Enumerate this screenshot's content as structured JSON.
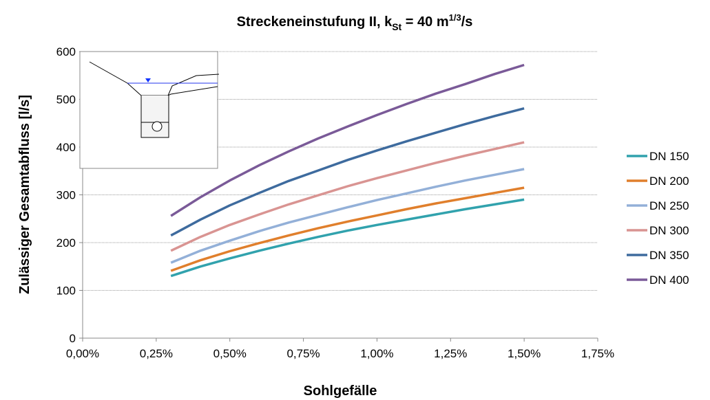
{
  "chart_data": {
    "type": "line",
    "title": [
      "Streckeneinstufung II, k",
      "St",
      " = 40 m",
      "1/3",
      "/s"
    ],
    "x_label": "Sohlgefälle",
    "y_label": "Zulässiger Gesamtabfluss [l/s]",
    "x": [
      0.3,
      0.4,
      0.5,
      0.6,
      0.7,
      0.8,
      0.9,
      1.0,
      1.1,
      1.2,
      1.3,
      1.4,
      1.5
    ],
    "series": [
      {
        "name": "DN 150",
        "color": "#31a2ad",
        "values": [
          130,
          150,
          167,
          183,
          198,
          212,
          225,
          237,
          248,
          259,
          270,
          280,
          290
        ]
      },
      {
        "name": "DN 200",
        "color": "#e07f2c",
        "values": [
          141,
          163,
          182,
          199,
          215,
          230,
          244,
          257,
          270,
          282,
          293,
          304,
          315
        ]
      },
      {
        "name": "DN 250",
        "color": "#93b0d8",
        "values": [
          158,
          183,
          204,
          224,
          242,
          258,
          274,
          289,
          303,
          317,
          330,
          342,
          354
        ]
      },
      {
        "name": "DN 300",
        "color": "#d99492",
        "values": [
          183,
          212,
          237,
          259,
          280,
          299,
          318,
          335,
          351,
          367,
          382,
          396,
          410
        ]
      },
      {
        "name": "DN 350",
        "color": "#3e6b9e",
        "values": [
          215,
          248,
          278,
          304,
          329,
          351,
          373,
          393,
          412,
          430,
          448,
          465,
          481
        ]
      },
      {
        "name": "DN 400",
        "color": "#7a5a98",
        "values": [
          256,
          295,
          330,
          362,
          391,
          418,
          443,
          467,
          490,
          512,
          532,
          553,
          572
        ]
      }
    ],
    "xlim": [
      0,
      1.75
    ],
    "xticks": [
      {
        "value": 0,
        "label": "0,00%"
      },
      {
        "value": 0.25,
        "label": "0,25%"
      },
      {
        "value": 0.5,
        "label": "0,50%"
      },
      {
        "value": 0.75,
        "label": "0,75%"
      },
      {
        "value": 1.0,
        "label": "1,00%"
      },
      {
        "value": 1.25,
        "label": "1,25%"
      },
      {
        "value": 1.5,
        "label": "1,50%"
      },
      {
        "value": 1.75,
        "label": "1,75%"
      }
    ],
    "ylim": [
      0,
      600
    ],
    "yticks": [
      0,
      100,
      200,
      300,
      400,
      500,
      600
    ],
    "grid": true
  }
}
